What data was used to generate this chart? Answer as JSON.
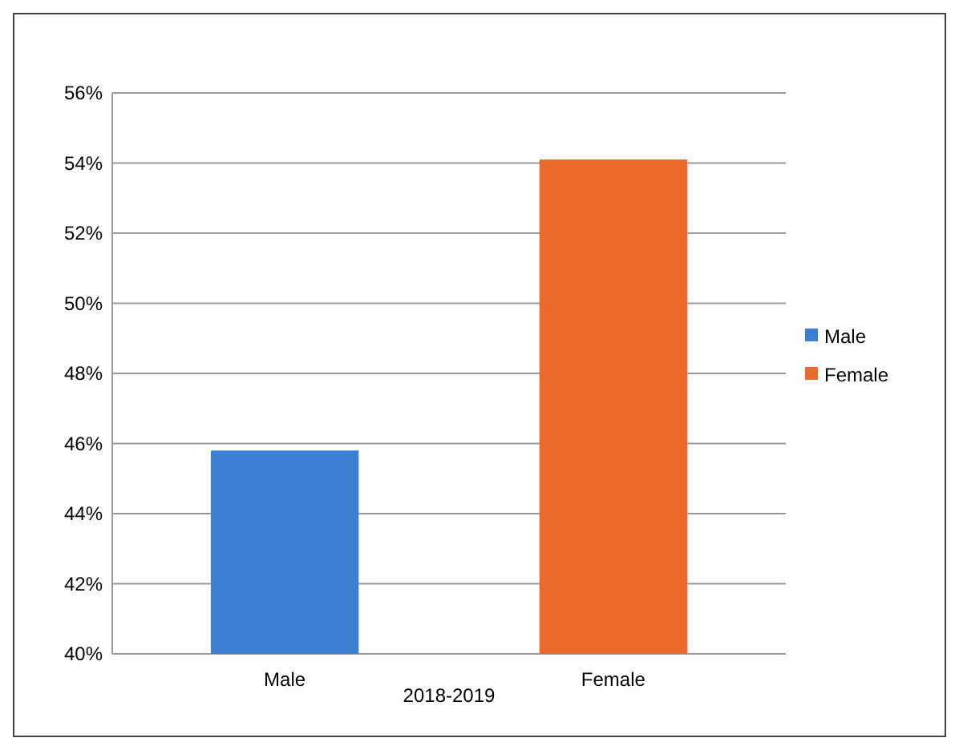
{
  "chart_data": {
    "type": "bar",
    "categories": [
      "Male",
      "Female"
    ],
    "xlabel": "2018-2019",
    "series": [
      {
        "name": "Male",
        "color": "#3b7fd4",
        "values": [
          45.8,
          null
        ]
      },
      {
        "name": "Female",
        "color": "#ee6a2c",
        "values": [
          null,
          54.1
        ]
      }
    ],
    "ylim": [
      40,
      56
    ],
    "yticks": [
      {
        "value": 40,
        "label": "40%"
      },
      {
        "value": 42,
        "label": "42%"
      },
      {
        "value": 44,
        "label": "44%"
      },
      {
        "value": 46,
        "label": "46%"
      },
      {
        "value": 48,
        "label": "48%"
      },
      {
        "value": 50,
        "label": "50%"
      },
      {
        "value": 52,
        "label": "52%"
      },
      {
        "value": 54,
        "label": "54%"
      },
      {
        "value": 56,
        "label": "56%"
      }
    ],
    "grid": "y",
    "legend": "right"
  }
}
